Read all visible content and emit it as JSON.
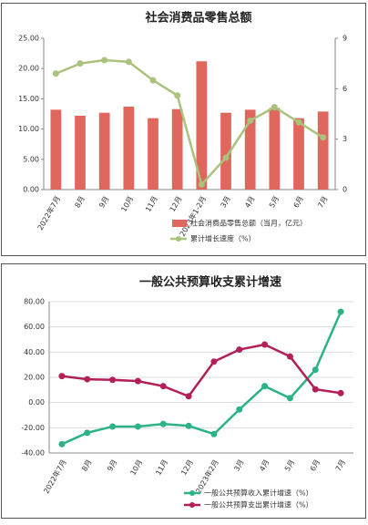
{
  "chart_data": [
    {
      "type": "bar",
      "title": "社会消费品零售总额",
      "categories": [
        "2022年7月",
        "8月",
        "9月",
        "10月",
        "11月",
        "12月",
        "2023年1-2月",
        "3月",
        "4月",
        "5月",
        "6月",
        "7月"
      ],
      "series": [
        {
          "name": "社会消费品零售总额（当月，亿元）",
          "type": "bar",
          "color": "#e0675d",
          "values": [
            13.2,
            12.2,
            12.7,
            13.7,
            11.8,
            13.3,
            21.2,
            12.7,
            13.2,
            13.5,
            11.8,
            12.9
          ]
        },
        {
          "name": "累计增长速度（%）",
          "type": "line",
          "axis": "y2",
          "color": "#a9c27c",
          "values": [
            6.9,
            7.5,
            7.7,
            7.6,
            6.5,
            5.6,
            0.3,
            1.9,
            4.1,
            4.9,
            4.0,
            3.1
          ]
        }
      ],
      "ylim": [
        0,
        25
      ],
      "yticks": [
        {
          "value": 0,
          "label": "0.00"
        },
        {
          "value": 5,
          "label": "5.00"
        },
        {
          "value": 10,
          "label": "10.00"
        },
        {
          "value": 15,
          "label": "15.00"
        },
        {
          "value": 20,
          "label": "20.00"
        },
        {
          "value": 25,
          "label": "25.00"
        }
      ],
      "y2lim": [
        0,
        9
      ],
      "y2ticks": [
        0,
        3,
        6,
        9
      ],
      "grid": false
    },
    {
      "type": "line",
      "title": "一般公共预算收支累计增速",
      "categories": [
        "2022年7月",
        "8月",
        "9月",
        "10月",
        "11月",
        "12月",
        "2023年2月",
        "3月",
        "4月",
        "5月",
        "6月",
        "7月"
      ],
      "series": [
        {
          "name": "一般公共预算收入累计增速（%）",
          "type": "line",
          "color": "#2bb387",
          "values": [
            -33,
            -24,
            -19,
            -19,
            -17,
            -18.5,
            -25,
            -5.5,
            13,
            3.5,
            26,
            72
          ]
        },
        {
          "name": "一般公共预算支出累计增速（%）",
          "type": "line",
          "color": "#b2205a",
          "values": [
            21,
            18.5,
            18,
            17,
            13,
            5,
            32.5,
            42,
            46,
            36.5,
            10.5,
            7.5
          ]
        }
      ],
      "ylim": [
        -40,
        80
      ],
      "yticks": [
        {
          "value": -40,
          "label": "-40.00"
        },
        {
          "value": -20,
          "label": "-20.00"
        },
        {
          "value": 0,
          "label": "0.00"
        },
        {
          "value": 20,
          "label": "20.00"
        },
        {
          "value": 40,
          "label": "40.00"
        },
        {
          "value": 60,
          "label": "60.00"
        },
        {
          "value": 80,
          "label": "80.00"
        }
      ],
      "grid": true
    }
  ]
}
